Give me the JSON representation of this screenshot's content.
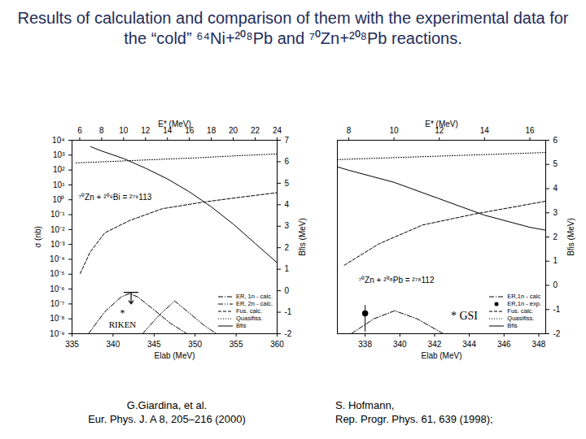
{
  "title": "Results of calculation and comparison of them with the experimental data for the “cold” ⁶⁴Ni+²⁰⁸Pb and ⁷⁰Zn+²⁰⁸Pb reactions.",
  "chart_data": [
    {
      "type": "line",
      "reaction_label": "⁷⁰Zn + ²⁰⁹Bi = ²⁷⁹113",
      "annotations": [
        "*",
        "RIKEN"
      ],
      "xlabel": "Elab (MeV)",
      "xlim": [
        335,
        360
      ],
      "xticks": [
        335,
        340,
        345,
        350,
        355,
        360
      ],
      "x2label": "E* (MeV)",
      "x2lim": [
        5.3,
        24.0
      ],
      "x2ticks": [
        6,
        8,
        10,
        12,
        14,
        16,
        18,
        20,
        22,
        24
      ],
      "ylabel": "σ (nb)",
      "log": "y",
      "ylim": [
        1e-09,
        10000.0
      ],
      "yticks": [
        {
          "value": 1e-09,
          "label": "10⁻⁹"
        },
        {
          "value": 1e-08,
          "label": "10⁻⁸"
        },
        {
          "value": 1e-07,
          "label": "10⁻⁷"
        },
        {
          "value": 1e-06,
          "label": "10⁻⁶"
        },
        {
          "value": 1e-05,
          "label": "10⁻⁵"
        },
        {
          "value": 0.0001,
          "label": "10⁻⁴"
        },
        {
          "value": 0.001,
          "label": "10⁻³"
        },
        {
          "value": 0.01,
          "label": "10⁻²"
        },
        {
          "value": 0.1,
          "label": "10⁻¹"
        },
        {
          "value": 1,
          "label": "10⁰"
        },
        {
          "value": 10,
          "label": "10¹"
        },
        {
          "value": 100,
          "label": "10²"
        },
        {
          "value": 1000,
          "label": "10³"
        },
        {
          "value": 10000,
          "label": "10⁴"
        }
      ],
      "y2label": "Bfis (MeV)",
      "y2lim": [
        -2,
        7
      ],
      "y2ticks": [
        -2,
        -1,
        0,
        1,
        2,
        3,
        4,
        5,
        6,
        7
      ],
      "legend": "bottom-right",
      "series": [
        {
          "name": "ER, 1n - calc.",
          "type": "line",
          "line_style": "dashdot",
          "color": "#000000",
          "x": [
            337,
            339,
            341,
            342,
            343,
            345,
            347,
            349
          ],
          "values": [
            1e-09,
            3e-08,
            3e-07,
            5e-07,
            3e-07,
            4e-08,
            5e-09,
            1e-09
          ]
        },
        {
          "name": "ER, 2n - calc.",
          "type": "line",
          "line_style": "dashdotdot",
          "color": "#000000",
          "x": [
            343.6,
            345.5,
            347.5,
            349.5,
            351,
            352.6
          ],
          "values": [
            1e-09,
            1.5e-08,
            1.6e-07,
            2e-08,
            4e-09,
            1e-09
          ]
        },
        {
          "name": "Fus. calc.",
          "type": "line",
          "line_style": "dashed",
          "color": "#000000",
          "x": [
            336,
            337.2,
            339,
            342,
            346,
            351,
            356,
            360
          ],
          "values": [
            1.1e-05,
            0.0003,
            0.006,
            0.04,
            0.25,
            0.7,
            1.6,
            3.0
          ]
        },
        {
          "name": "Quasifiss.",
          "type": "line",
          "line_style": "dotted",
          "color": "#000000",
          "x": [
            335.5,
            340,
            345,
            350,
            355,
            360
          ],
          "values": [
            300,
            380,
            500,
            650,
            900,
            1200
          ]
        },
        {
          "name": "Bfis",
          "type": "line",
          "line_style": "solid",
          "color": "#000000",
          "axis": "y2",
          "x": [
            7,
            8,
            10,
            12,
            14,
            16,
            18,
            20,
            22,
            24
          ],
          "values": [
            6.7,
            6.5,
            6.15,
            5.7,
            5.2,
            4.6,
            3.9,
            3.1,
            2.2,
            1.3
          ]
        }
      ],
      "upper_limits": {
        "marker": "upper_limit",
        "color": "#000000",
        "x": [
          342.2
        ],
        "values": [
          6e-07
        ]
      },
      "source": [
        "G.Giardina, et al.",
        "Eur. Phys. J. A 8, 205–216 (2000)"
      ]
    },
    {
      "type": "line",
      "reaction_label": "⁷⁰Zn + ²⁰⁸Pb = ²⁷⁸112",
      "annotations": [
        "* GSI"
      ],
      "xlabel": "Elab (MeV)",
      "xlim": [
        336.4,
        348.4
      ],
      "xticks": [
        338,
        340,
        342,
        344,
        346,
        348
      ],
      "x2label": "E* (MeV)",
      "x2lim": [
        7.5,
        16.7
      ],
      "x2ticks": [
        8,
        10,
        12,
        14,
        16
      ],
      "log": "y",
      "ylim": [
        1e-09,
        10000.0
      ],
      "yticks": [],
      "y2label": "Bfis (MeV)",
      "y2lim": [
        -2,
        6
      ],
      "y2ticks": [
        -2,
        -1,
        0,
        1,
        2,
        3,
        4,
        5,
        6
      ],
      "legend": "bottom-right",
      "series": [
        {
          "name": "ER,1n - calc",
          "type": "line",
          "line_style": "dashdot",
          "color": "#000000",
          "x": [
            337.2,
            338.5,
            339.7,
            341,
            342.5
          ],
          "values": [
            1e-09,
            1e-08,
            3.5e-08,
            1e-08,
            1e-09
          ]
        },
        {
          "name": "ER,1n - exp.",
          "type": "scatter",
          "marker": "circle",
          "color": "#000000",
          "x": [
            338.0
          ],
          "values": [
            2.3e-08
          ],
          "error_bounds": [
            [
              1.3e-09,
              8e-08
            ]
          ]
        },
        {
          "name": "Fus. calc.",
          "type": "line",
          "line_style": "dashed",
          "color": "#000000",
          "x": [
            336.8,
            338.8,
            341.3,
            344.3,
            348.4
          ],
          "values": [
            4e-05,
            0.0011,
            0.02,
            0.11,
            0.8
          ]
        },
        {
          "name": "Quasifiss.",
          "type": "line",
          "line_style": "dotted",
          "color": "#000000",
          "x": [
            336.4,
            340,
            344,
            348.4
          ],
          "values": [
            500,
            700,
            1000,
            1500
          ]
        },
        {
          "name": "Bfis",
          "type": "line",
          "line_style": "solid",
          "color": "#000000",
          "axis": "y2",
          "x": [
            7.5,
            8,
            10,
            12,
            14,
            16,
            16.7
          ],
          "values": [
            4.9,
            4.76,
            4.26,
            3.58,
            2.9,
            2.4,
            2.28
          ]
        }
      ],
      "source": [
        "S. Hofmann,",
        "Rep. Progr. Phys. 61, 639 (1998);"
      ]
    }
  ]
}
